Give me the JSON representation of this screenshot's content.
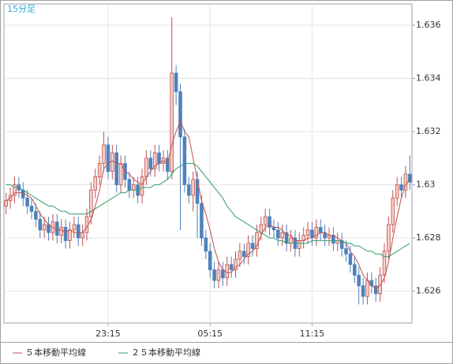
{
  "chart_data": {
    "type": "candlestick",
    "label": "15分足",
    "categories": [
      null,
      null,
      null,
      null,
      null,
      null,
      null,
      null,
      null,
      null,
      null,
      null,
      null,
      null,
      null,
      null,
      null,
      null,
      null,
      null,
      null,
      null,
      null,
      null,
      "23:15",
      null,
      null,
      null,
      null,
      null,
      null,
      null,
      null,
      null,
      null,
      null,
      null,
      null,
      null,
      null,
      null,
      null,
      null,
      null,
      null,
      null,
      null,
      null,
      "05:15",
      null,
      null,
      null,
      null,
      null,
      null,
      null,
      null,
      null,
      null,
      null,
      null,
      null,
      null,
      null,
      null,
      null,
      null,
      null,
      null,
      null,
      null,
      null,
      "11:15",
      null,
      null,
      null,
      null,
      null,
      null,
      null,
      null,
      null,
      null,
      null,
      null,
      null,
      null,
      null,
      null,
      null,
      null,
      null,
      null,
      null,
      null,
      null
    ],
    "open": [
      1.6292,
      1.6294,
      1.6296,
      1.63,
      1.6298,
      1.6295,
      1.6292,
      1.629,
      1.6287,
      1.6283,
      1.6285,
      1.6282,
      1.6286,
      1.6281,
      1.6284,
      1.6279,
      1.6283,
      1.6285,
      1.628,
      1.6282,
      1.6288,
      1.6298,
      1.6303,
      1.6308,
      1.6315,
      1.6305,
      1.6312,
      1.63,
      1.6308,
      1.6302,
      1.6298,
      1.63,
      1.6296,
      1.6303,
      1.631,
      1.6306,
      1.6312,
      1.6308,
      1.631,
      1.6305,
      1.6342,
      1.6335,
      1.6318,
      1.63,
      1.6296,
      1.6302,
      1.6293,
      1.628,
      1.6275,
      1.6268,
      1.6264,
      1.6268,
      1.6265,
      1.627,
      1.6268,
      1.6272,
      1.6275,
      1.6273,
      1.6278,
      1.6276,
      1.6282,
      1.6285,
      1.6288,
      1.6284,
      1.6283,
      1.628,
      1.6282,
      1.6278,
      1.628,
      1.6276,
      1.6279,
      1.6281,
      1.6283,
      1.628,
      1.6284,
      1.6282,
      1.628,
      1.6281,
      1.6278,
      1.6279,
      1.6276,
      1.6274,
      1.627,
      1.6266,
      1.6262,
      1.6258,
      1.6264,
      1.6262,
      1.6259,
      1.6266,
      1.6275,
      1.6285,
      1.6295,
      1.63,
      1.6298,
      1.6304
    ],
    "high": [
      1.6297,
      1.6299,
      1.6303,
      1.6303,
      1.6301,
      1.6298,
      1.6295,
      1.6293,
      1.629,
      1.6288,
      1.6288,
      1.6289,
      1.6289,
      1.6287,
      1.6287,
      1.6286,
      1.6288,
      1.6288,
      1.6285,
      1.6291,
      1.6301,
      1.6306,
      1.6311,
      1.632,
      1.6318,
      1.6315,
      1.6315,
      1.6311,
      1.6311,
      1.6305,
      1.6303,
      1.6303,
      1.6306,
      1.6313,
      1.6313,
      1.6315,
      1.6315,
      1.6313,
      1.6313,
      1.6363,
      1.6345,
      1.6338,
      1.6321,
      1.6303,
      1.6305,
      1.6305,
      1.6296,
      1.6283,
      1.6278,
      1.6271,
      1.6271,
      1.6271,
      1.6273,
      1.6273,
      1.6275,
      1.6278,
      1.6278,
      1.6281,
      1.6281,
      1.6285,
      1.6288,
      1.6291,
      1.6291,
      1.6287,
      1.6286,
      1.6285,
      1.6285,
      1.6283,
      1.6283,
      1.6282,
      1.6284,
      1.6286,
      1.6286,
      1.6287,
      1.6287,
      1.6285,
      1.6284,
      1.6284,
      1.6282,
      1.6282,
      1.6279,
      1.6277,
      1.6273,
      1.6269,
      1.6265,
      1.6267,
      1.6267,
      1.6265,
      1.6269,
      1.6278,
      1.6288,
      1.6298,
      1.6303,
      1.6303,
      1.6307,
      1.6311
    ],
    "low": [
      1.6289,
      1.6291,
      1.6293,
      1.6295,
      1.6292,
      1.6289,
      1.6287,
      1.6284,
      1.628,
      1.628,
      1.6279,
      1.6279,
      1.6278,
      1.6278,
      1.6276,
      1.6276,
      1.628,
      1.6277,
      1.6277,
      1.6279,
      1.6285,
      1.6295,
      1.63,
      1.6305,
      1.6302,
      1.6302,
      1.6297,
      1.6297,
      1.6299,
      1.6295,
      1.6295,
      1.6293,
      1.6293,
      1.63,
      1.6303,
      1.6303,
      1.6305,
      1.6305,
      1.6302,
      1.6302,
      1.633,
      1.6283,
      1.6297,
      1.6293,
      1.629,
      1.628,
      1.6277,
      1.6272,
      1.6265,
      1.6261,
      1.6261,
      1.6262,
      1.6262,
      1.6265,
      1.6265,
      1.6269,
      1.627,
      1.627,
      1.6273,
      1.6273,
      1.6279,
      1.6282,
      1.6281,
      1.628,
      1.6277,
      1.6277,
      1.6275,
      1.6275,
      1.6273,
      1.6273,
      1.6276,
      1.6278,
      1.6277,
      1.6277,
      1.6279,
      1.6277,
      1.6277,
      1.6275,
      1.6275,
      1.6273,
      1.6271,
      1.6267,
      1.6263,
      1.6255,
      1.6255,
      1.6255,
      1.6259,
      1.6256,
      1.6256,
      1.6263,
      1.6272,
      1.6282,
      1.6292,
      1.6295,
      1.6295,
      1.6298
    ],
    "close": [
      1.6294,
      1.6296,
      1.63,
      1.6298,
      1.6295,
      1.6292,
      1.629,
      1.6287,
      1.6283,
      1.6285,
      1.6282,
      1.6286,
      1.6281,
      1.6284,
      1.6279,
      1.6283,
      1.6285,
      1.628,
      1.6282,
      1.6288,
      1.6298,
      1.6303,
      1.6308,
      1.6315,
      1.6305,
      1.6312,
      1.63,
      1.6308,
      1.6302,
      1.6298,
      1.63,
      1.6296,
      1.6303,
      1.631,
      1.6306,
      1.6312,
      1.6308,
      1.631,
      1.6305,
      1.6342,
      1.6335,
      1.6318,
      1.63,
      1.6296,
      1.6302,
      1.6293,
      1.628,
      1.6275,
      1.6268,
      1.6264,
      1.6268,
      1.6265,
      1.627,
      1.6268,
      1.6272,
      1.6275,
      1.6273,
      1.6278,
      1.6276,
      1.6282,
      1.6285,
      1.6288,
      1.6284,
      1.6283,
      1.628,
      1.6282,
      1.6278,
      1.628,
      1.6276,
      1.6279,
      1.6281,
      1.6283,
      1.628,
      1.6284,
      1.6282,
      1.628,
      1.6281,
      1.6278,
      1.6279,
      1.6276,
      1.6274,
      1.627,
      1.6266,
      1.6262,
      1.6258,
      1.6264,
      1.6262,
      1.6259,
      1.6266,
      1.6275,
      1.6285,
      1.6295,
      1.63,
      1.6298,
      1.6304,
      1.6301
    ],
    "up_color": "#c0504d",
    "up_fill": "#f4cfc8",
    "down_color": "#4f81bd",
    "series": [
      {
        "name": "５本移動平均線",
        "color": "#c0504d",
        "values": [
          1.6294,
          1.6295,
          1.6297,
          1.6297,
          1.6297,
          1.6296,
          1.6295,
          1.6292,
          1.6289,
          1.6287,
          1.6285,
          1.6284,
          1.6283,
          1.6283,
          1.6282,
          1.6283,
          1.6282,
          1.6282,
          1.6282,
          1.6284,
          1.6287,
          1.6292,
          1.6298,
          1.6306,
          1.6308,
          1.6309,
          1.6308,
          1.6308,
          1.6305,
          1.6304,
          1.6302,
          1.6301,
          1.63,
          1.6303,
          1.6305,
          1.6307,
          1.6308,
          1.6309,
          1.6308,
          1.6315,
          1.632,
          1.6324,
          1.632,
          1.6318,
          1.631,
          1.6302,
          1.6294,
          1.6289,
          1.6283,
          1.6276,
          1.6271,
          1.6268,
          1.6267,
          1.6267,
          1.6269,
          1.627,
          1.6272,
          1.6274,
          1.6275,
          1.6277,
          1.6281,
          1.6284,
          1.6285,
          1.6284,
          1.6284,
          1.6283,
          1.6281,
          1.6281,
          1.6279,
          1.6279,
          1.6279,
          1.628,
          1.628,
          1.6281,
          1.6282,
          1.6282,
          1.6281,
          1.6281,
          1.628,
          1.6279,
          1.6278,
          1.6275,
          1.6273,
          1.627,
          1.6266,
          1.6264,
          1.6262,
          1.6261,
          1.6262,
          1.6265,
          1.6271,
          1.628,
          1.6288,
          1.6295,
          1.63,
          1.6302
        ]
      },
      {
        "name": "２５本移動平均線",
        "color": "#2e9e6a",
        "values": [
          1.63,
          1.63,
          1.6299,
          1.6299,
          1.6298,
          1.6297,
          1.6296,
          1.6295,
          1.6294,
          1.6293,
          1.6292,
          1.6292,
          1.6291,
          1.629,
          1.629,
          1.6289,
          1.6289,
          1.6289,
          1.6289,
          1.6289,
          1.629,
          1.6291,
          1.6292,
          1.6293,
          1.6294,
          1.6295,
          1.6296,
          1.6297,
          1.6297,
          1.6298,
          1.6298,
          1.6298,
          1.6299,
          1.6299,
          1.6299,
          1.63,
          1.63,
          1.6301,
          1.6302,
          1.6304,
          1.6306,
          1.6307,
          1.6308,
          1.6308,
          1.6308,
          1.6307,
          1.6305,
          1.6303,
          1.6301,
          1.6299,
          1.6297,
          1.6295,
          1.6292,
          1.629,
          1.6288,
          1.6287,
          1.6286,
          1.6285,
          1.6284,
          1.6283,
          1.6282,
          1.6281,
          1.628,
          1.628,
          1.6279,
          1.6279,
          1.6278,
          1.6278,
          1.6278,
          1.6278,
          1.6278,
          1.6278,
          1.6279,
          1.6279,
          1.6279,
          1.6279,
          1.6279,
          1.6279,
          1.6279,
          1.6279,
          1.6278,
          1.6278,
          1.6277,
          1.6277,
          1.6276,
          1.6275,
          1.6275,
          1.6274,
          1.6274,
          1.6273,
          1.6273,
          1.6274,
          1.6275,
          1.6276,
          1.6277,
          1.6278
        ]
      }
    ],
    "ylim": [
      1.6248,
      1.6368
    ],
    "yticks": [
      1.626,
      1.628,
      1.63,
      1.632,
      1.634,
      1.636
    ],
    "grid": true
  }
}
